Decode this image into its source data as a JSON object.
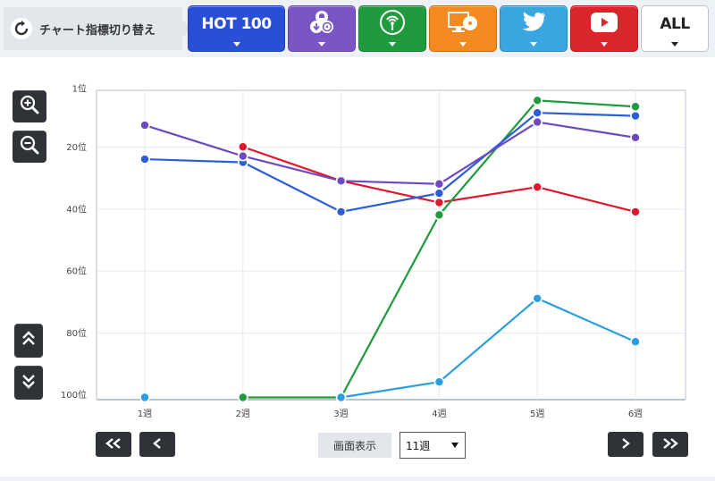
{
  "header": {
    "switch_label": "チャート指標切り替え",
    "buttons": [
      {
        "id": "hot100",
        "label": "HOT 100",
        "icon": "hot100-label",
        "color": "#2a4fd6"
      },
      {
        "id": "download",
        "label": "",
        "icon": "download-sales-icon",
        "color": "#7a55c4"
      },
      {
        "id": "streaming",
        "label": "",
        "icon": "streaming-icon",
        "color": "#1f9a3c"
      },
      {
        "id": "radio",
        "label": "",
        "icon": "radio-pc-icon",
        "color": "#f28a1f"
      },
      {
        "id": "twitter",
        "label": "",
        "icon": "twitter-icon",
        "color": "#3aa6e0"
      },
      {
        "id": "youtube",
        "label": "",
        "icon": "youtube-icon",
        "color": "#d9262d"
      },
      {
        "id": "all",
        "label": "ALL",
        "icon": "",
        "color": "#ffffff"
      }
    ]
  },
  "chart_data": {
    "type": "line",
    "x": [
      "1週",
      "2週",
      "3週",
      "4週",
      "5週",
      "6週"
    ],
    "y_ticks": [
      {
        "value": 1,
        "label": "1位"
      },
      {
        "value": 20,
        "label": "20位"
      },
      {
        "value": 40,
        "label": "40位"
      },
      {
        "value": 60,
        "label": "60位"
      },
      {
        "value": 80,
        "label": "80位"
      },
      {
        "value": 100,
        "label": "100位"
      }
    ],
    "ylim": [
      1,
      101
    ],
    "y_inverted": true,
    "grid": true,
    "series": [
      {
        "color": "#e0162b",
        "values": [
          null,
          20,
          31,
          38,
          33,
          41
        ]
      },
      {
        "color": "#1f9a3c",
        "values": [
          null,
          101,
          101,
          42,
          5,
          7
        ]
      },
      {
        "color": "#2a5fd6",
        "values": [
          24,
          25,
          41,
          35,
          9,
          10
        ]
      },
      {
        "color": "#6f49c1",
        "values": [
          13,
          23,
          31,
          32,
          12,
          17
        ]
      },
      {
        "color": "#2b9ee0",
        "values": [
          101,
          null,
          101,
          96,
          69,
          83
        ]
      }
    ]
  },
  "controls": {
    "zoom_in": "zoom-in-icon",
    "zoom_out": "zoom-out-icon",
    "scroll_up": "double-chevron-up-icon",
    "scroll_down": "double-chevron-down-icon"
  },
  "footer": {
    "display_label": "画面表示",
    "weeks_value": "11週"
  }
}
